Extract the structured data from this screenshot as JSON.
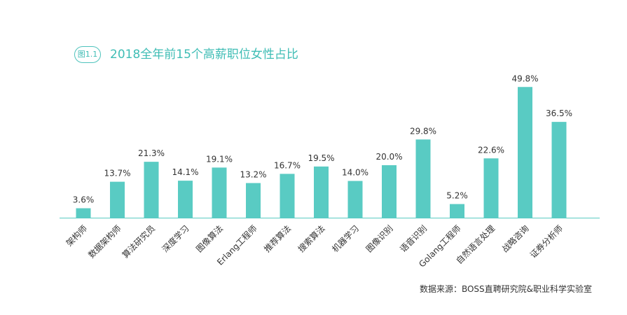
{
  "figure_label": "图1.1",
  "source_note": "数据来源：BOSS直聘研究院&职业科学实验室",
  "colors": {
    "bar": "#59cbc3",
    "accent": "#3fbdb5",
    "axis": "#59cbc3",
    "text": "#333333"
  },
  "chart_data": {
    "type": "bar",
    "title": "2018全年前15个高薪职位女性占比",
    "xlabel": "",
    "ylabel": "",
    "ylim": [
      0,
      55
    ],
    "grid": false,
    "categories": [
      "架构师",
      "数据架构师",
      "算法研究员",
      "深度学习",
      "图像算法",
      "Erlang工程师",
      "推荐算法",
      "搜索算法",
      "机器学习",
      "图像识别",
      "语音识别",
      "Golang工程师",
      "自然语言处理",
      "战略咨询",
      "证券分析师"
    ],
    "values": [
      3.6,
      13.7,
      21.3,
      14.1,
      19.1,
      13.2,
      16.7,
      19.5,
      14.0,
      20.0,
      29.8,
      5.2,
      22.6,
      49.8,
      36.5
    ],
    "value_labels": [
      "3.6%",
      "13.7%",
      "21.3%",
      "14.1%",
      "19.1%",
      "13.2%",
      "16.7%",
      "19.5%",
      "14.0%",
      "20.0%",
      "29.8%",
      "5.2%",
      "22.6%",
      "49.8%",
      "36.5%"
    ]
  }
}
